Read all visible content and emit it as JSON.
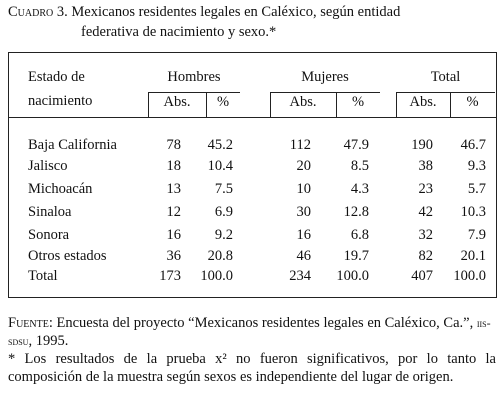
{
  "caption": {
    "label": "Cuadro 3.",
    "lines": [
      "Mexicanos residentes legales en Caléxico, según entidad",
      "federativa de nacimiento y sexo.*"
    ]
  },
  "table": {
    "row_label": [
      "Estado de",
      "nacimiento"
    ],
    "groups": [
      "Hombres",
      "Mujeres",
      "Total"
    ],
    "subheaders": [
      "Abs.",
      "%",
      "Abs.",
      "%",
      "Abs.",
      "%"
    ],
    "rows": [
      [
        "Baja California",
        "78",
        "45.2",
        "112",
        "47.9",
        "190",
        "46.7"
      ],
      [
        "Jalisco",
        "18",
        "10.4",
        "20",
        "8.5",
        "38",
        "9.3"
      ],
      [
        "Michoacán",
        "13",
        "7.5",
        "10",
        "4.3",
        "23",
        "5.7"
      ],
      [
        "Sinaloa",
        "12",
        "6.9",
        "30",
        "12.8",
        "42",
        "10.3"
      ],
      [
        "Sonora",
        "16",
        "9.2",
        "16",
        "6.8",
        "32",
        "7.9"
      ],
      [
        "Otros estados",
        "36",
        "20.8",
        "46",
        "19.7",
        "82",
        "20.1"
      ],
      [
        "Total",
        "173",
        "100.0",
        "234",
        "100.0",
        "407",
        "100.0"
      ]
    ]
  },
  "footnotes": {
    "source_label": "Fuente:",
    "source_text": "Encuesta del proyecto “Mexicanos residentes legales en Caléxico, Ca.”,",
    "source_org": "iis-sdsu",
    "source_year": ", 1995.",
    "note": "* Los resultados de la prueba x² no fueron significativos, por lo tanto la composición de la muestra según sexos es independiente del lugar de origen."
  }
}
